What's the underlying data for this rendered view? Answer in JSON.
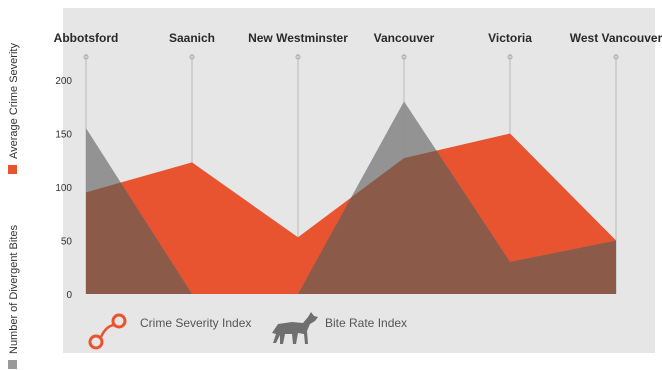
{
  "chart_data": {
    "type": "area",
    "categories": [
      "Abbotsford",
      "Saanich",
      "New Westminster",
      "Vancouver",
      "Victoria",
      "West Vancouver"
    ],
    "series": [
      {
        "name": "Crime Severity Index",
        "values": [
          95,
          123,
          53,
          127,
          150,
          50
        ],
        "color": "#e8542f"
      },
      {
        "name": "Bite Rate Index",
        "values": [
          155,
          0,
          0,
          180,
          30,
          50
        ],
        "color": "#8e8e8e"
      }
    ],
    "ylim": [
      0,
      215
    ],
    "yticks": [
      0,
      50,
      100,
      150,
      200
    ],
    "ylabel_left": "Number of Divergent Bites",
    "ylabel_right": "Average Crime Severity",
    "overlap_color": "#8c5a49",
    "grid": false,
    "legend_position": "bottom-left",
    "legend_icons": [
      "handcuffs-icon",
      "dog-icon"
    ]
  }
}
